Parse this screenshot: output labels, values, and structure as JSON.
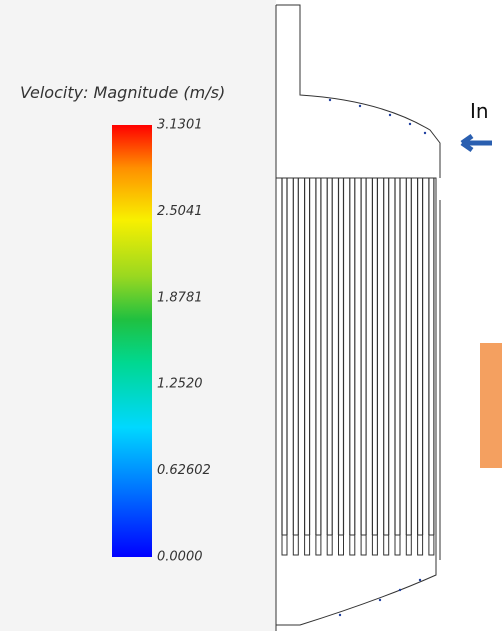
{
  "colorbar": {
    "title": "Velocity: Magnitude (m/s)",
    "ticks": [
      "3.1301",
      "2.5041",
      "1.8781",
      "1.2520",
      "0.62602",
      "0.0000"
    ]
  },
  "annotation": "In"
}
